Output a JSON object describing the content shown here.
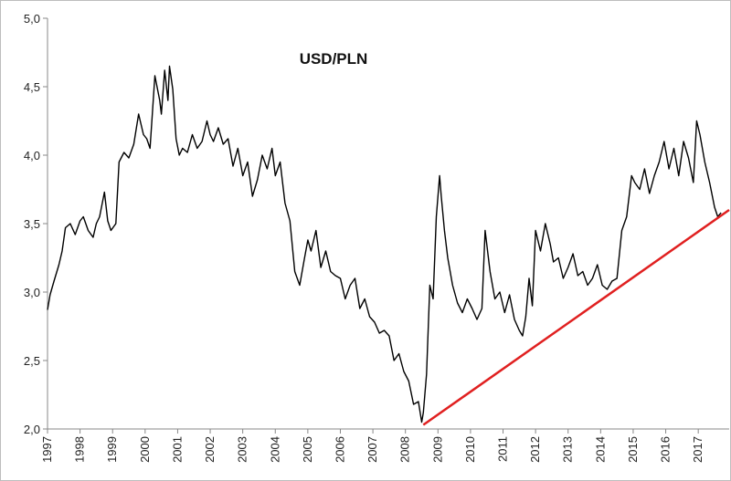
{
  "chart_data": {
    "type": "line",
    "title": "USD/PLN",
    "xlabel": "",
    "ylabel": "",
    "xlim": [
      1997.0,
      2017.95
    ],
    "ylim": [
      2.0,
      5.0
    ],
    "yticks": [
      "2,0",
      "2,5",
      "3,0",
      "3,5",
      "4,0",
      "4,5",
      "5,0"
    ],
    "xticks": [
      "1997",
      "1998",
      "1999",
      "2000",
      "2001",
      "2002",
      "2003",
      "2004",
      "2005",
      "2006",
      "2007",
      "2008",
      "2009",
      "2010",
      "2011",
      "2012",
      "2013",
      "2014",
      "2015",
      "2016",
      "2017"
    ],
    "grid": false,
    "legend": "none",
    "colors": {
      "series": "#000000",
      "trendline": "#e02020"
    },
    "series": [
      {
        "x": [
          1997.0,
          1997.08,
          1997.2,
          1997.35,
          1997.45,
          1997.55,
          1997.7,
          1997.85,
          1998.0,
          1998.1,
          1998.25,
          1998.4,
          1998.5,
          1998.6,
          1998.75,
          1998.85,
          1998.95,
          1999.1,
          1999.2,
          1999.35,
          1999.5,
          1999.65,
          1999.8,
          1999.95,
          2000.05,
          2000.15,
          2000.3,
          2000.45,
          2000.5,
          2000.6,
          2000.7,
          2000.75,
          2000.85,
          2000.95,
          2001.05,
          2001.15,
          2001.3,
          2001.45,
          2001.6,
          2001.75,
          2001.9,
          2002.0,
          2002.1,
          2002.25,
          2002.4,
          2002.55,
          2002.7,
          2002.85,
          2003.0,
          2003.15,
          2003.3,
          2003.45,
          2003.6,
          2003.75,
          2003.9,
          2004.0,
          2004.15,
          2004.3,
          2004.45,
          2004.6,
          2004.75,
          2004.9,
          2005.0,
          2005.1,
          2005.25,
          2005.4,
          2005.55,
          2005.7,
          2005.85,
          2006.0,
          2006.15,
          2006.3,
          2006.45,
          2006.6,
          2006.75,
          2006.9,
          2007.05,
          2007.2,
          2007.35,
          2007.5,
          2007.65,
          2007.8,
          2007.95,
          2008.1,
          2008.25,
          2008.4,
          2008.5,
          2008.55,
          2008.65,
          2008.75,
          2008.85,
          2008.95,
          2009.05,
          2009.1,
          2009.2,
          2009.3,
          2009.45,
          2009.6,
          2009.75,
          2009.9,
          2010.05,
          2010.2,
          2010.35,
          2010.45,
          2010.6,
          2010.75,
          2010.9,
          2011.05,
          2011.2,
          2011.35,
          2011.5,
          2011.6,
          2011.7,
          2011.8,
          2011.9,
          2012.0,
          2012.15,
          2012.3,
          2012.45,
          2012.55,
          2012.7,
          2012.85,
          2013.0,
          2013.15,
          2013.3,
          2013.45,
          2013.6,
          2013.75,
          2013.9,
          2014.05,
          2014.2,
          2014.35,
          2014.5,
          2014.65,
          2014.8,
          2014.95,
          2015.05,
          2015.2,
          2015.35,
          2015.5,
          2015.65,
          2015.8,
          2015.95,
          2016.1,
          2016.25,
          2016.4,
          2016.55,
          2016.7,
          2016.85,
          2016.95,
          2017.05,
          2017.2,
          2017.35,
          2017.5,
          2017.6,
          2017.7
        ],
        "y": [
          2.87,
          2.98,
          3.08,
          3.2,
          3.3,
          3.47,
          3.5,
          3.42,
          3.52,
          3.55,
          3.45,
          3.4,
          3.5,
          3.55,
          3.73,
          3.52,
          3.45,
          3.5,
          3.95,
          4.02,
          3.98,
          4.08,
          4.3,
          4.15,
          4.12,
          4.05,
          4.58,
          4.4,
          4.3,
          4.62,
          4.4,
          4.65,
          4.48,
          4.12,
          4.0,
          4.05,
          4.02,
          4.15,
          4.05,
          4.1,
          4.25,
          4.15,
          4.1,
          4.2,
          4.08,
          4.12,
          3.92,
          4.05,
          3.85,
          3.95,
          3.7,
          3.82,
          4.0,
          3.9,
          4.05,
          3.85,
          3.95,
          3.65,
          3.52,
          3.15,
          3.05,
          3.25,
          3.38,
          3.3,
          3.45,
          3.18,
          3.3,
          3.15,
          3.12,
          3.1,
          2.95,
          3.05,
          3.1,
          2.88,
          2.95,
          2.82,
          2.78,
          2.7,
          2.72,
          2.68,
          2.5,
          2.55,
          2.42,
          2.35,
          2.18,
          2.2,
          2.05,
          2.12,
          2.4,
          3.05,
          2.95,
          3.55,
          3.85,
          3.7,
          3.45,
          3.25,
          3.05,
          2.92,
          2.85,
          2.95,
          2.88,
          2.8,
          2.88,
          3.45,
          3.15,
          2.95,
          3.0,
          2.85,
          2.98,
          2.8,
          2.72,
          2.68,
          2.82,
          3.1,
          2.9,
          3.45,
          3.3,
          3.5,
          3.35,
          3.22,
          3.25,
          3.1,
          3.18,
          3.28,
          3.12,
          3.15,
          3.05,
          3.1,
          3.2,
          3.05,
          3.02,
          3.08,
          3.1,
          3.45,
          3.55,
          3.85,
          3.8,
          3.75,
          3.9,
          3.72,
          3.85,
          3.95,
          4.1,
          3.9,
          4.05,
          3.85,
          4.1,
          3.98,
          3.8,
          4.25,
          4.15,
          3.95,
          3.8,
          3.62,
          3.55,
          3.58
        ]
      }
    ],
    "trendline": {
      "x": [
        2008.55,
        2017.95
      ],
      "y": [
        2.03,
        3.6
      ]
    }
  }
}
